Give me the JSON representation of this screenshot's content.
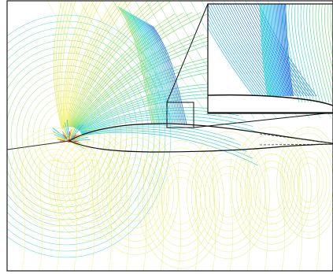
{
  "figure": {
    "kind": "contour-plot",
    "subject": "airfoil",
    "has_inset_zoom": true,
    "colormap": "jet",
    "colors": {
      "background": "#ffffff",
      "frame": "#1a1a1a",
      "airfoil_outline": "#111111",
      "stagnation_red": "#e8251b",
      "orange": "#f28a1c",
      "yellow": "#f4f04a",
      "yellow_green": "#d7ea70",
      "green": "#7fdc6a",
      "cyan": "#2fd6d0",
      "light_blue": "#39b8ef",
      "blue": "#2a6fe0"
    },
    "text_labels": []
  }
}
